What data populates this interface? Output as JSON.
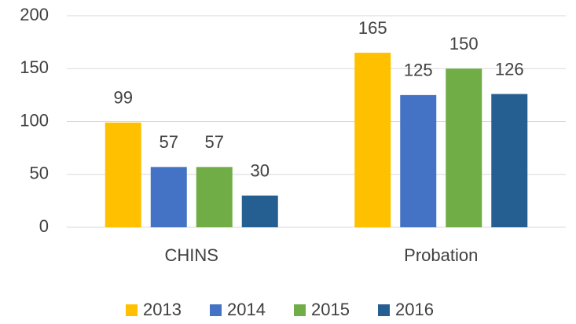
{
  "chart_data": {
    "type": "bar",
    "categories": [
      "CHINS",
      "Probation"
    ],
    "series": [
      {
        "name": "2013",
        "color": "#ffc000",
        "values": [
          99,
          165
        ]
      },
      {
        "name": "2014",
        "color": "#4472c4",
        "values": [
          57,
          125
        ]
      },
      {
        "name": "2015",
        "color": "#70ad47",
        "values": [
          57,
          150
        ]
      },
      {
        "name": "2016",
        "color": "#255e91",
        "values": [
          30,
          126
        ]
      }
    ],
    "ylim": [
      0,
      200
    ],
    "yticks": [
      0,
      50,
      100,
      150,
      200
    ],
    "grid": true,
    "legend": "bottom",
    "data_labels": true
  }
}
